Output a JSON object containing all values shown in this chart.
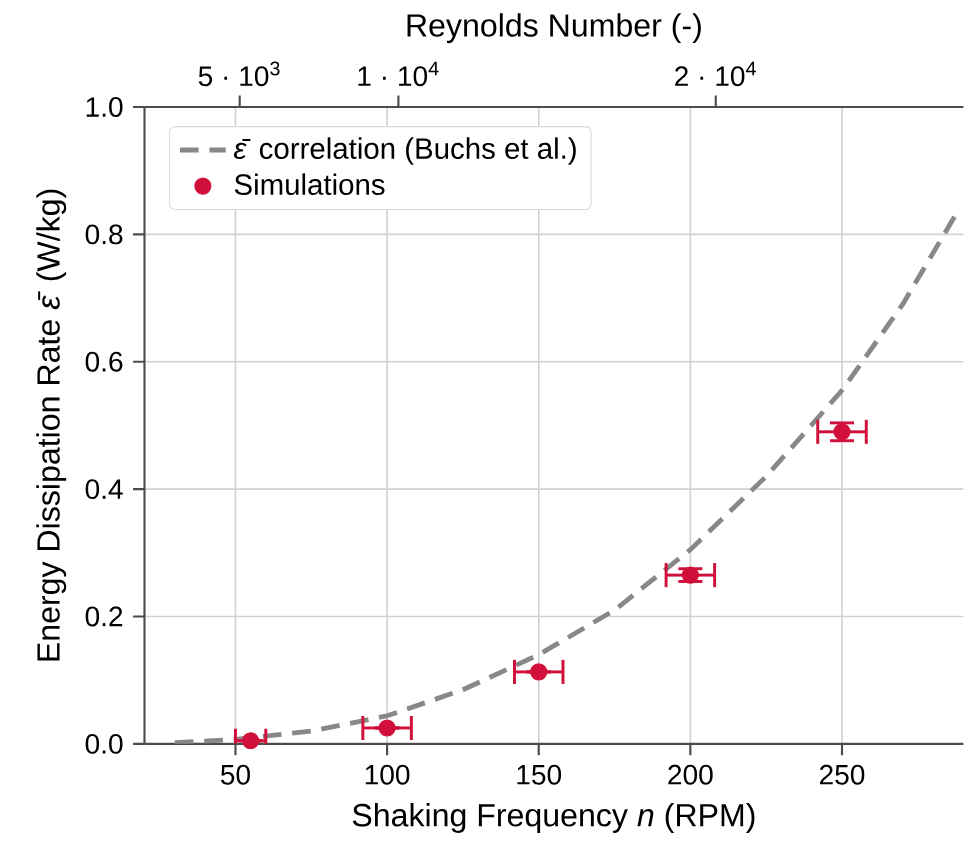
{
  "chart_data": {
    "type": "scatter",
    "xlabel": "Shaking Frequency *n* (RPM)",
    "ylabel": "Energy Dissipation Rate *ε̄* (W/kg)",
    "x2label": "Reynolds Number (-)",
    "xlim": [
      20,
      290
    ],
    "xticks": [
      50,
      100,
      150,
      200,
      250
    ],
    "ylim": [
      0,
      1.0
    ],
    "yticks": [
      {
        "value": 0,
        "label": "0.0"
      },
      0.2,
      0.4,
      0.6,
      0.8,
      {
        "value": 1,
        "label": "1.0"
      }
    ],
    "x2lim": [
      2000,
      27800
    ],
    "x2ticks": [
      {
        "value": 5000,
        "label": "5 · 10$^{3}$"
      },
      {
        "value": 10000,
        "label": "1 · 10$^{4}$"
      },
      {
        "value": 20000,
        "label": "2 · 10$^{4}$"
      }
    ],
    "grid": true,
    "legend": "top left",
    "series": [
      {
        "name": "*ε̄* correlation (Buchs et al.)",
        "type": "line",
        "line_style": "dashed",
        "marker": "none",
        "color": "#888888",
        "x": [
          30,
          50,
          75,
          100,
          125,
          150,
          175,
          200,
          225,
          250,
          270,
          288
        ],
        "values": [
          0.002,
          0.007,
          0.02,
          0.044,
          0.085,
          0.14,
          0.21,
          0.305,
          0.42,
          0.555,
          0.69,
          0.835
        ]
      },
      {
        "name": "Simulations",
        "marker": "circle",
        "color": "#d0103a",
        "x": [
          55,
          100,
          150,
          200,
          250
        ],
        "values": [
          0.005,
          0.025,
          0.113,
          0.265,
          0.49
        ],
        "xerrors": [
          5,
          8,
          8,
          8,
          8
        ],
        "errors": [
          null,
          null,
          null,
          0.01,
          0.014
        ]
      }
    ]
  }
}
